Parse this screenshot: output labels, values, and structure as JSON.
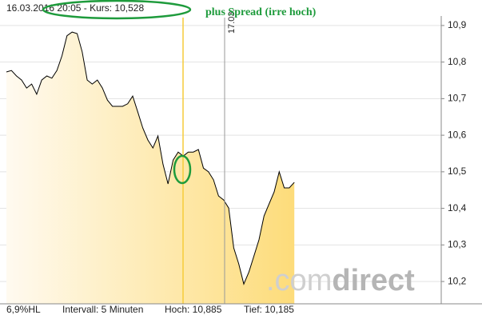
{
  "chart_data": {
    "type": "area",
    "header": "16.03.2016 20:05  -  Kurs: 10,528",
    "annotation": "plus Spread (irre hoch)",
    "day_marker": "17.03.",
    "footer": [
      "6,9%HL",
      "Intervall: 5 Minuten",
      "Hoch:  10,885",
      "Tief:  10,185"
    ],
    "watermark": [
      ".com",
      "direct"
    ],
    "color": "#000000",
    "fill_colors": [
      "#fffaf0",
      "#fddc7a"
    ],
    "grid": true,
    "ylim": [
      10.139,
      10.926
    ],
    "yticks": [
      {
        "value": 10.2,
        "label": "10,2"
      },
      {
        "value": 10.3,
        "label": "10,3"
      },
      {
        "value": 10.4,
        "label": "10,4"
      },
      {
        "value": 10.5,
        "label": "10,5"
      },
      {
        "value": 10.6,
        "label": "10,6"
      },
      {
        "value": 10.7,
        "label": "10,7"
      },
      {
        "value": 10.8,
        "label": "10,8"
      },
      {
        "value": 10.9,
        "label": "10,9"
      }
    ],
    "values": [
      10.773,
      10.777,
      10.762,
      10.751,
      10.729,
      10.74,
      10.712,
      10.751,
      10.762,
      10.756,
      10.777,
      10.817,
      10.872,
      10.882,
      10.878,
      10.828,
      10.751,
      10.74,
      10.751,
      10.729,
      10.696,
      10.679,
      10.679,
      10.679,
      10.686,
      10.707,
      10.664,
      10.62,
      10.587,
      10.565,
      10.598,
      10.521,
      10.467,
      10.532,
      10.554,
      10.543,
      10.554,
      10.554,
      10.561,
      10.51,
      10.5,
      10.478,
      10.434,
      10.423,
      10.401,
      10.292,
      10.248,
      10.193,
      10.226,
      10.27,
      10.314,
      10.379,
      10.412,
      10.445,
      10.5,
      10.456,
      10.456,
      10.471
    ]
  }
}
